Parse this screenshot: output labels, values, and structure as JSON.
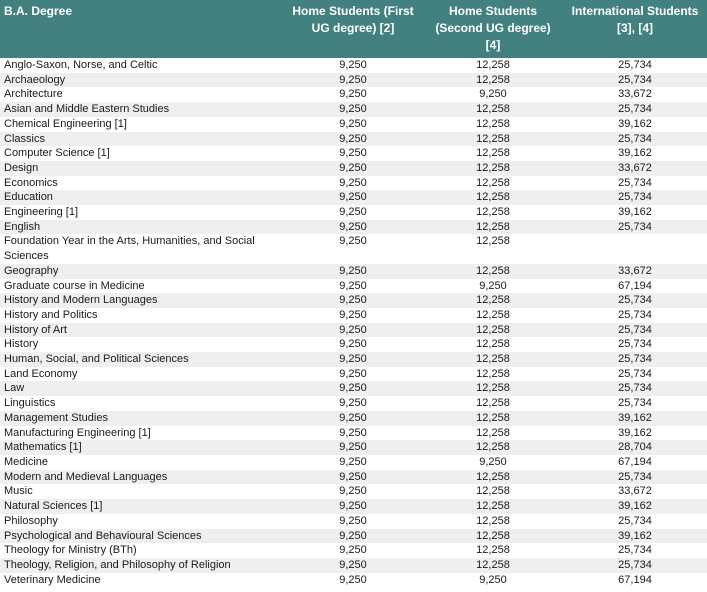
{
  "colors": {
    "header_bg": "#428180",
    "header_text": "#ffffff",
    "row_stripe": "#efefef",
    "body_text": "#1a1a1a"
  },
  "table": {
    "columns": [
      "B.A. Degree",
      "Home Students (First UG degree) [2]",
      "Home Students (Second UG degree) [4]",
      "International Students [3], [4]"
    ],
    "rows": [
      [
        "Anglo-Saxon, Norse, and Celtic",
        "9,250",
        "12,258",
        "25,734"
      ],
      [
        "Archaeology",
        "9,250",
        "12,258",
        "25,734"
      ],
      [
        "Architecture",
        "9,250",
        "9,250",
        "33,672"
      ],
      [
        "Asian and Middle Eastern Studies",
        "9,250",
        "12,258",
        "25,734"
      ],
      [
        "Chemical Engineering [1]",
        "9,250",
        "12,258",
        "39,162"
      ],
      [
        "Classics",
        "9,250",
        "12,258",
        "25,734"
      ],
      [
        "Computer Science [1]",
        "9,250",
        "12,258",
        "39,162"
      ],
      [
        "Design",
        "9,250",
        "12,258",
        "33,672"
      ],
      [
        "Economics",
        "9,250",
        "12,258",
        "25,734"
      ],
      [
        "Education",
        "9,250",
        "12,258",
        "25,734"
      ],
      [
        "Engineering [1]",
        "9,250",
        "12,258",
        "39,162"
      ],
      [
        "English",
        "9,250",
        "12,258",
        "25,734"
      ],
      [
        "Foundation Year in the Arts, Humanities, and Social Sciences",
        "9,250",
        "12,258",
        ""
      ],
      [
        "Geography",
        "9,250",
        "12,258",
        "33,672"
      ],
      [
        "Graduate course in Medicine",
        "9,250",
        "9,250",
        "67,194"
      ],
      [
        "History and Modern Languages",
        "9,250",
        "12,258",
        "25,734"
      ],
      [
        "History and Politics",
        "9,250",
        "12,258",
        "25,734"
      ],
      [
        "History of Art",
        "9,250",
        "12,258",
        "25,734"
      ],
      [
        "History",
        "9,250",
        "12,258",
        "25,734"
      ],
      [
        "Human, Social, and Political Sciences",
        "9,250",
        "12,258",
        "25,734"
      ],
      [
        "Land Economy",
        "9,250",
        "12,258",
        "25,734"
      ],
      [
        "Law",
        "9,250",
        "12,258",
        "25,734"
      ],
      [
        "Linguistics",
        "9,250",
        "12,258",
        "25,734"
      ],
      [
        "Management Studies",
        "9,250",
        "12,258",
        "39,162"
      ],
      [
        "Manufacturing Engineering [1]",
        "9,250",
        "12,258",
        "39,162"
      ],
      [
        "Mathematics [1]",
        "9,250",
        "12,258",
        "28,704"
      ],
      [
        "Medicine",
        "9,250",
        "9,250",
        "67,194"
      ],
      [
        "Modern and Medieval Languages",
        "9,250",
        "12,258",
        "25,734"
      ],
      [
        "Music",
        "9,250",
        "12,258",
        "33,672"
      ],
      [
        "Natural Sciences [1]",
        "9,250",
        "12,258",
        "39,162"
      ],
      [
        "Philosophy",
        "9,250",
        "12,258",
        "25,734"
      ],
      [
        "Psychological and Behavioural Sciences",
        "9,250",
        "12,258",
        "39,162"
      ],
      [
        "Theology for Ministry (BTh)",
        "9,250",
        "12,258",
        "25,734"
      ],
      [
        "Theology, Religion, and Philosophy of Religion",
        "9,250",
        "12,258",
        "25,734"
      ],
      [
        "Veterinary Medicine",
        "9,250",
        "9,250",
        "67,194"
      ]
    ]
  }
}
